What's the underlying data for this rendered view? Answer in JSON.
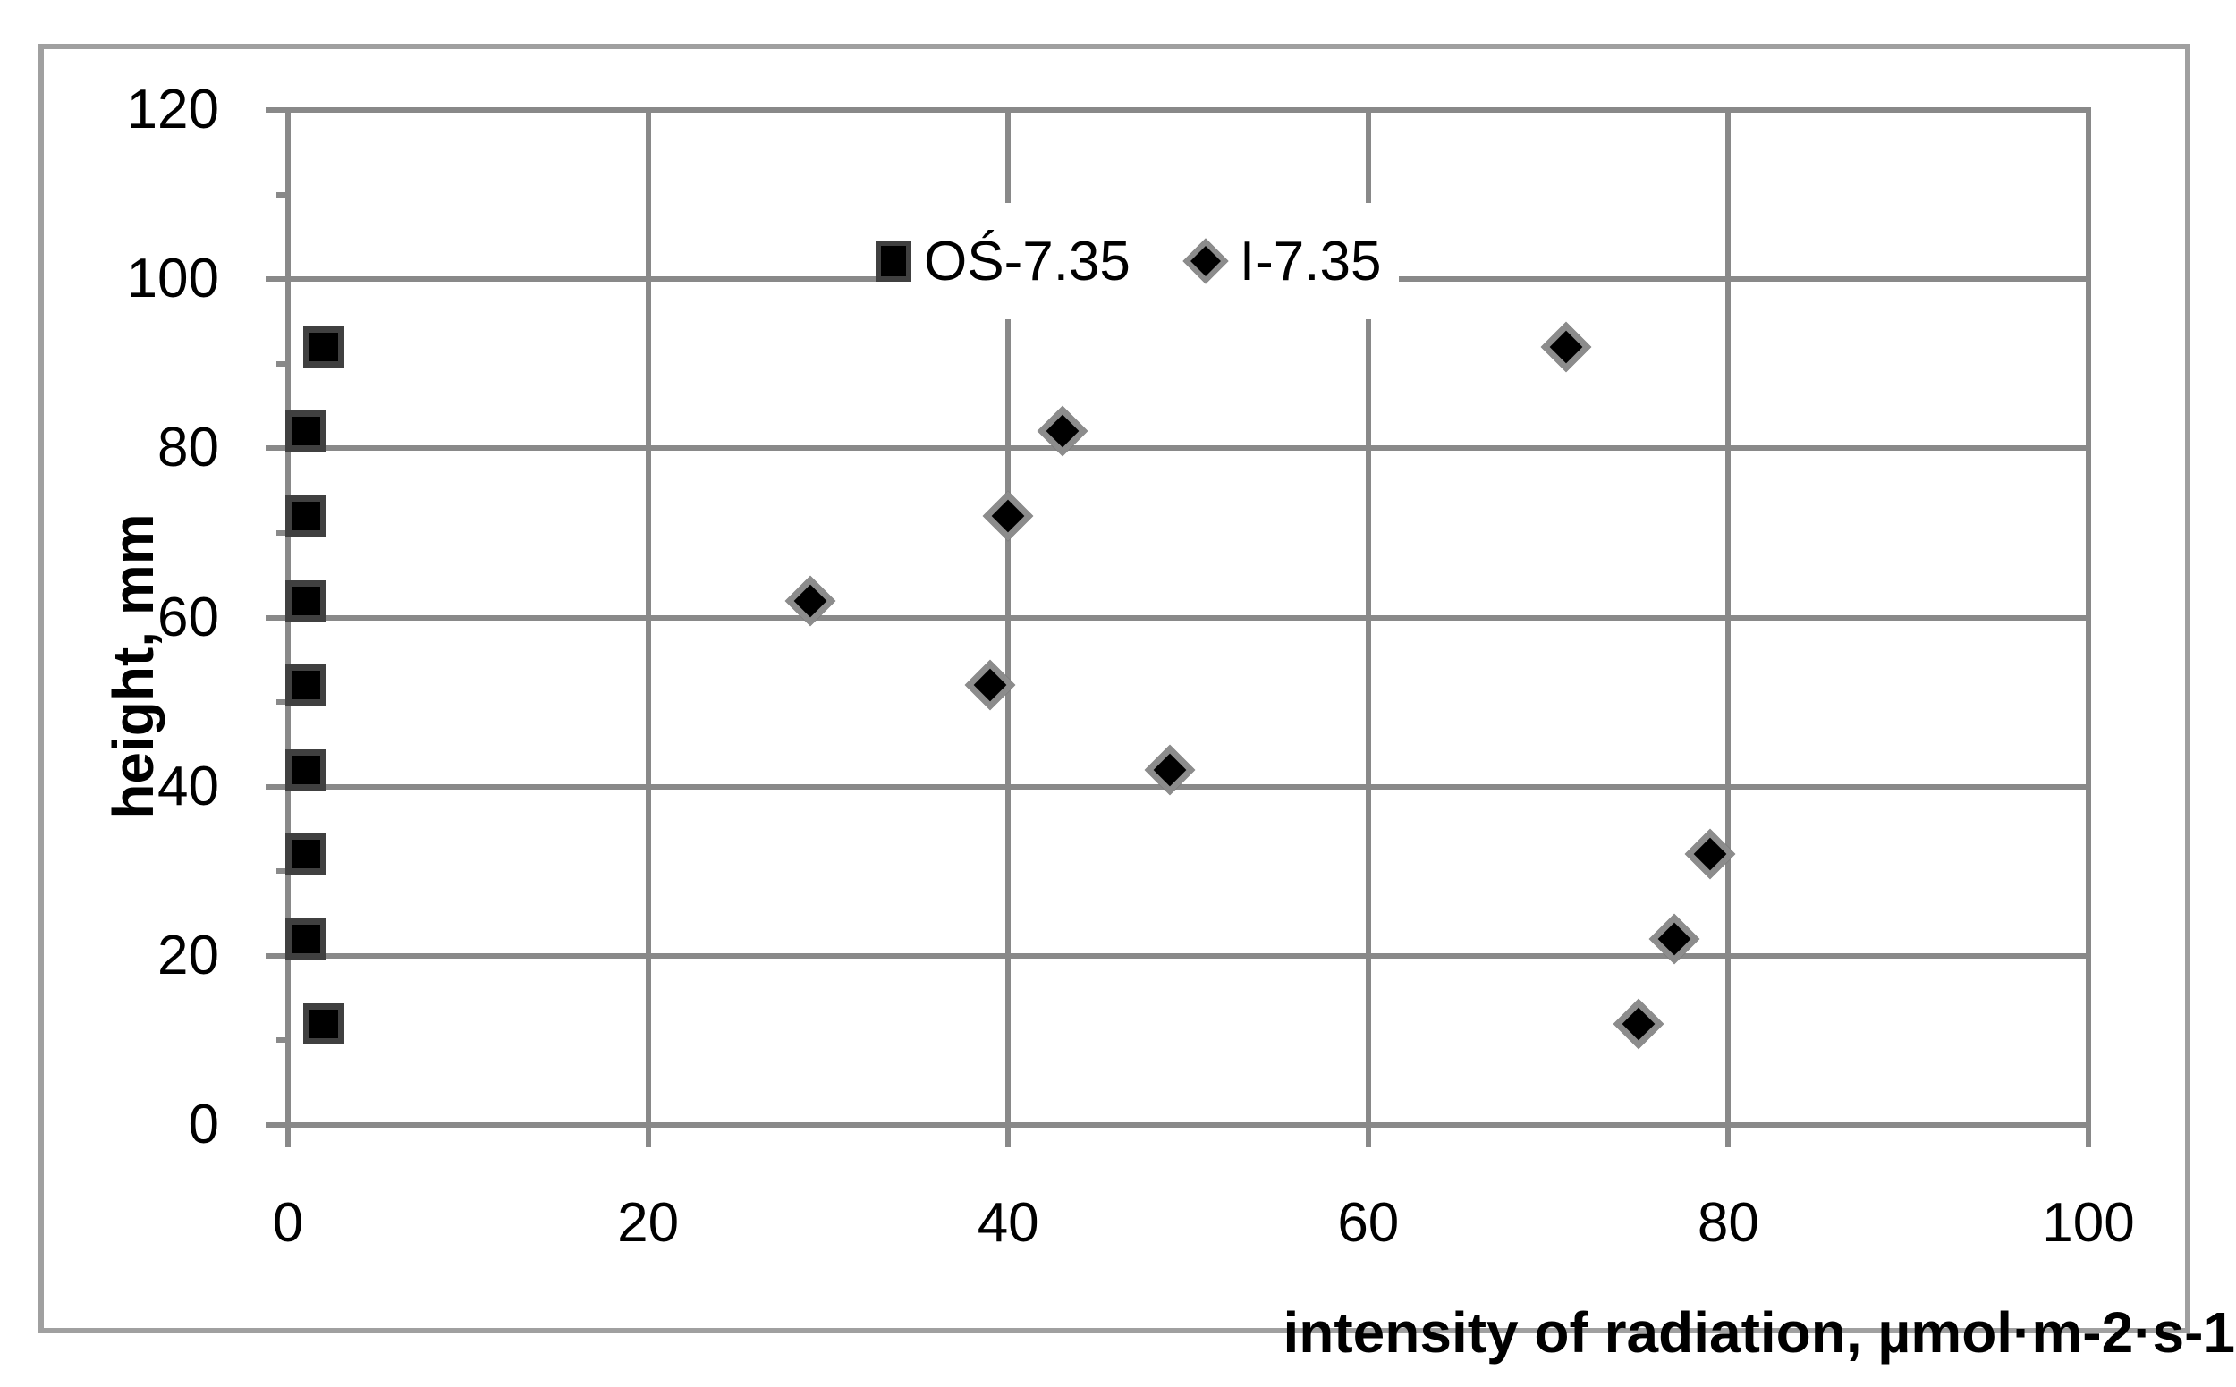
{
  "chart_data": {
    "type": "scatter",
    "title": "",
    "xlabel": "intensity of radiation, µmol·m-2·s-1",
    "ylabel": "height, mm",
    "xlim": [
      0,
      100
    ],
    "ylim": [
      0,
      120
    ],
    "xticks": [
      0,
      20,
      40,
      60,
      80,
      100
    ],
    "yticks": [
      0,
      20,
      40,
      60,
      80,
      100,
      120
    ],
    "y_minor_tick_step": 10,
    "grid": true,
    "legend_position": "top-center-inside",
    "series": [
      {
        "name": "OŚ-7.35",
        "marker": "square",
        "fill": "#000000",
        "stroke": "#404040",
        "points": [
          [
            2,
            12
          ],
          [
            1,
            22
          ],
          [
            1,
            32
          ],
          [
            1,
            42
          ],
          [
            1,
            52
          ],
          [
            1,
            62
          ],
          [
            1,
            72
          ],
          [
            1,
            82
          ],
          [
            2,
            92
          ]
        ]
      },
      {
        "name": "I-7.35",
        "marker": "diamond",
        "fill": "#000000",
        "stroke": "#8c8c8c",
        "points": [
          [
            75,
            12
          ],
          [
            77,
            22
          ],
          [
            79,
            32
          ],
          [
            49,
            42
          ],
          [
            39,
            52
          ],
          [
            29,
            62
          ],
          [
            40,
            72
          ],
          [
            43,
            82
          ],
          [
            71,
            92
          ]
        ]
      }
    ],
    "colors": {
      "grid": "#898989",
      "axis": "#898989",
      "frame_border": "#a0a0a0",
      "text": "#000000",
      "background": "#ffffff"
    }
  }
}
